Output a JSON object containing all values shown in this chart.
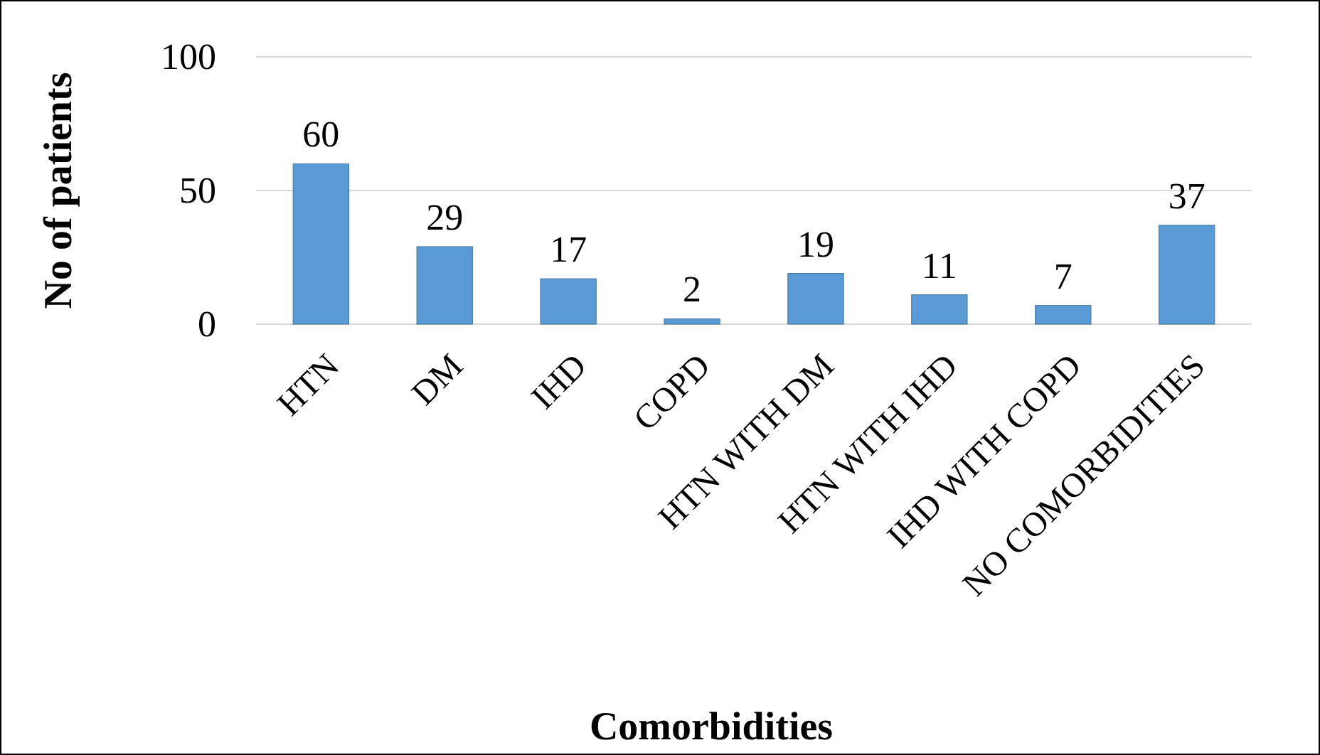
{
  "chart_data": {
    "type": "bar",
    "xlabel": "Comorbidities",
    "ylabel": "No of patients",
    "categories": [
      "HTN",
      "DM",
      "IHD",
      "COPD",
      "HTN WITH DM",
      "HTN WITH IHD",
      "IHD WITH COPD",
      "NO COMORBIDITIES"
    ],
    "values": [
      60,
      29,
      17,
      2,
      19,
      11,
      7,
      37
    ],
    "color": "#5b9bd5",
    "ylim": [
      0,
      100
    ],
    "yticks": [
      0,
      50,
      100
    ],
    "grid": "y",
    "data_labels": true
  }
}
